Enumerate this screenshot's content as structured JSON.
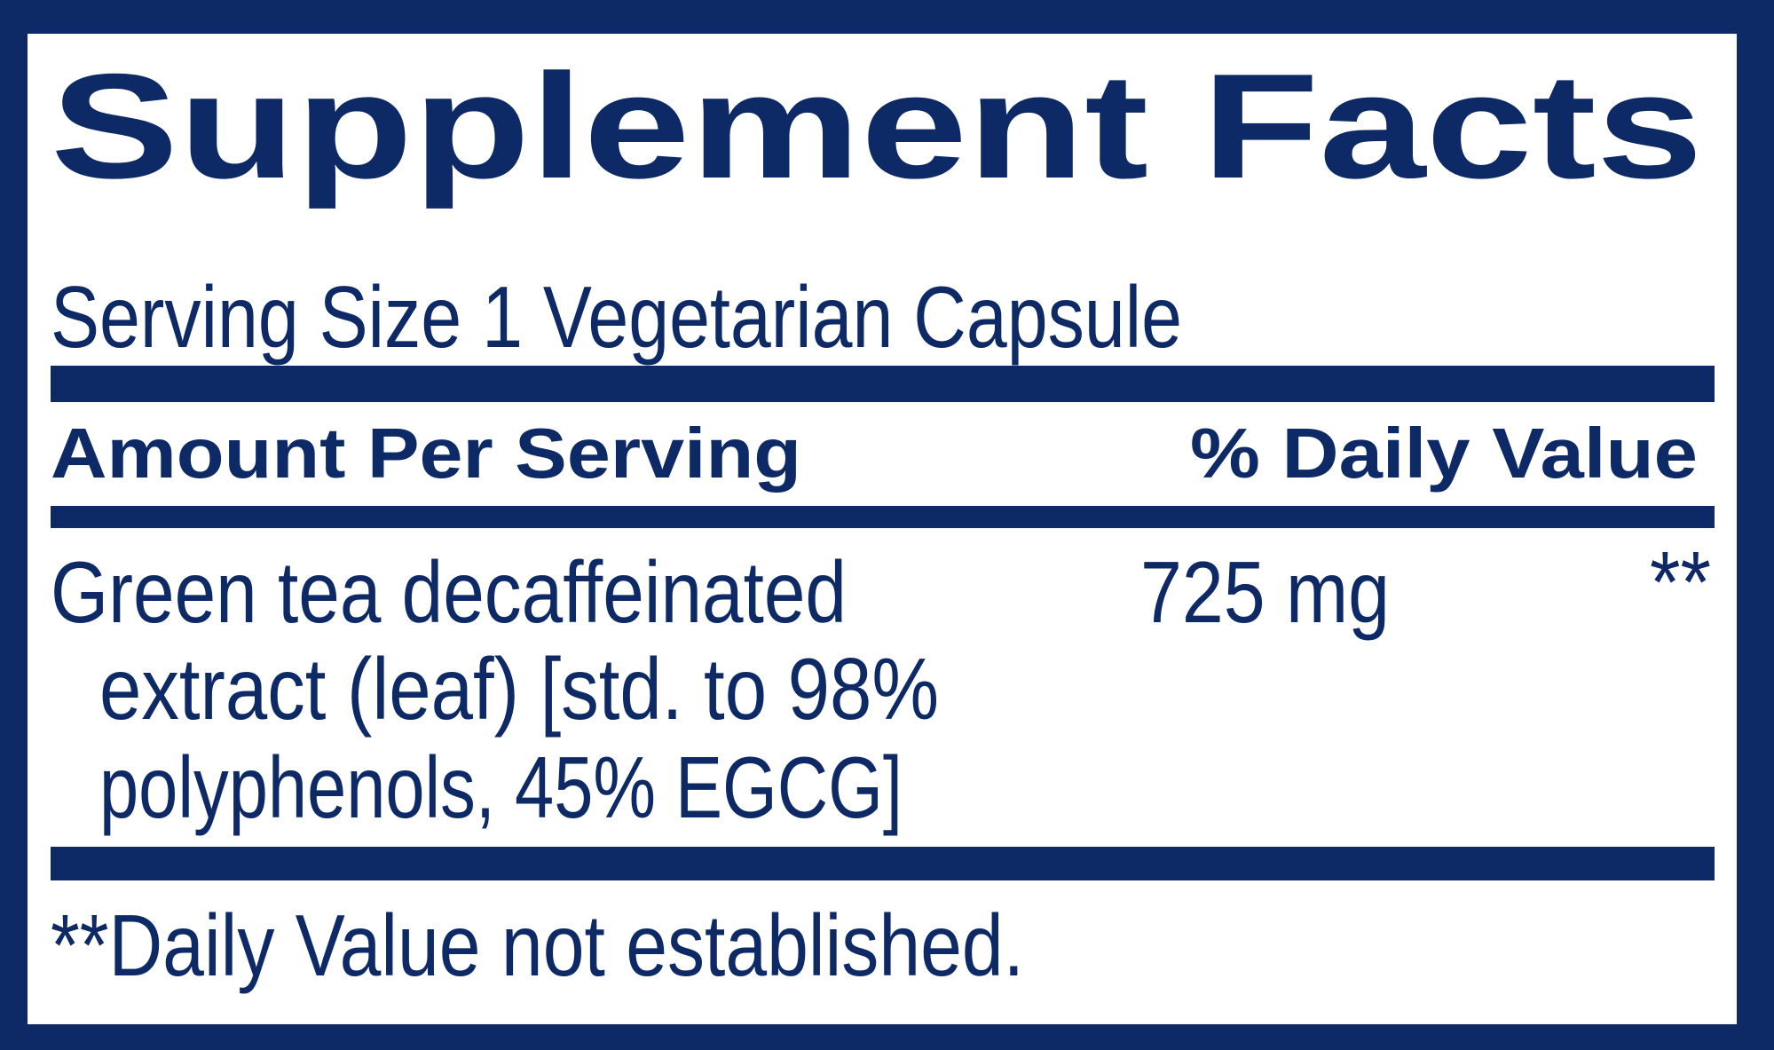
{
  "title": "Supplement Facts",
  "serving_size": "Serving Size 1 Vegetarian Capsule",
  "header": {
    "amount": "Amount Per Serving",
    "daily_value": "% Daily Value"
  },
  "rows": [
    {
      "name_lines": [
        "Green tea decaffeinated",
        "extract (leaf) [std. to 98%",
        "polyphenols, 45% EGCG]"
      ],
      "amount": "725 mg",
      "daily_value": "**"
    }
  ],
  "footnote": "**Daily Value not established."
}
